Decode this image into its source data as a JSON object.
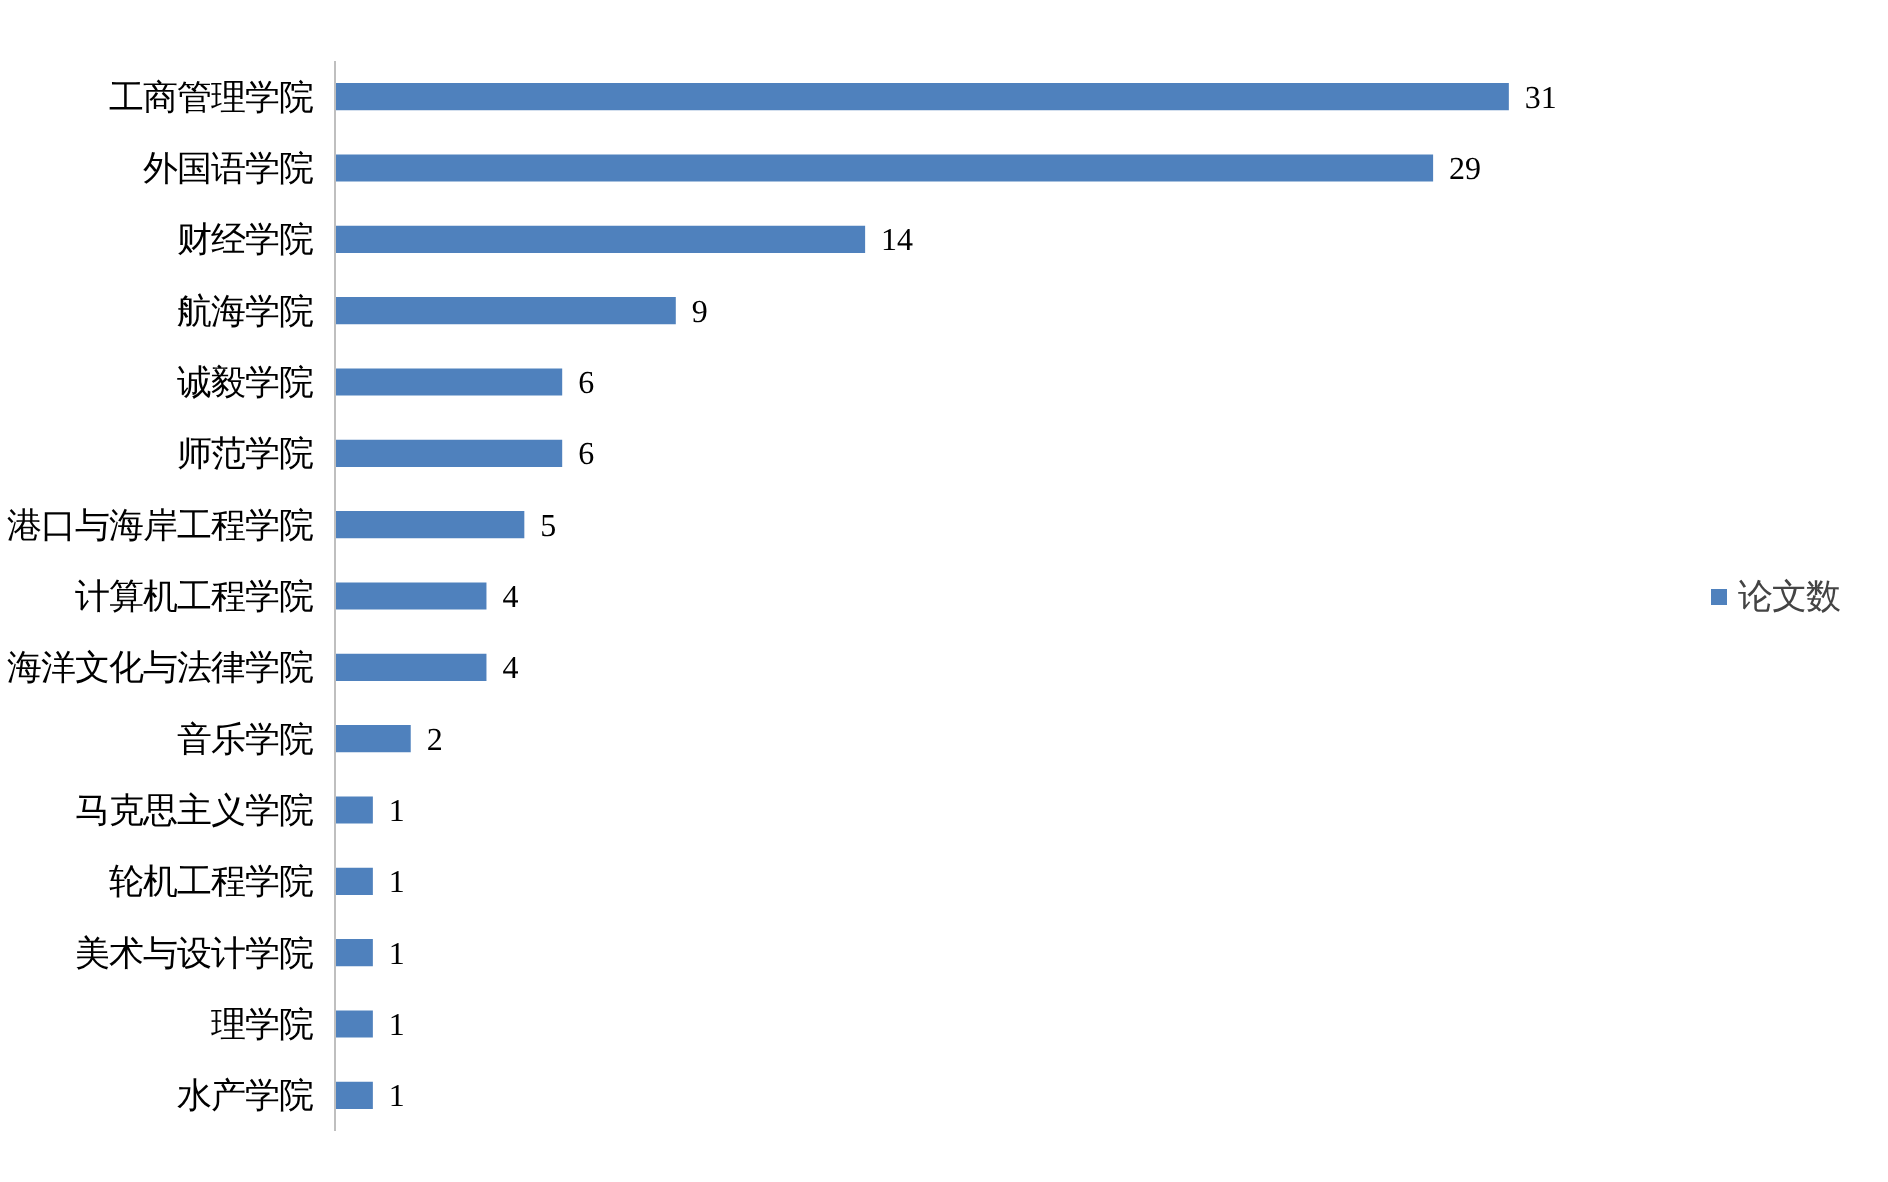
{
  "chart_data": {
    "type": "bar",
    "orientation": "horizontal",
    "categories": [
      "工商管理学院",
      "外国语学院",
      "财经学院",
      "航海学院",
      "诚毅学院",
      "师范学院",
      "港口与海岸工程学院",
      "计算机工程学院",
      "海洋文化与法律学院",
      "音乐学院",
      "马克思主义学院",
      "轮机工程学院",
      "美术与设计学院",
      "理学院",
      "水产学院"
    ],
    "series": [
      {
        "name": "论文数",
        "color": "#4f81bd",
        "values": [
          31,
          29,
          14,
          9,
          6,
          6,
          5,
          4,
          4,
          2,
          1,
          1,
          1,
          1,
          1
        ]
      }
    ],
    "data_labels": true,
    "legend": "right",
    "grid": false,
    "tick_labels": "y"
  }
}
